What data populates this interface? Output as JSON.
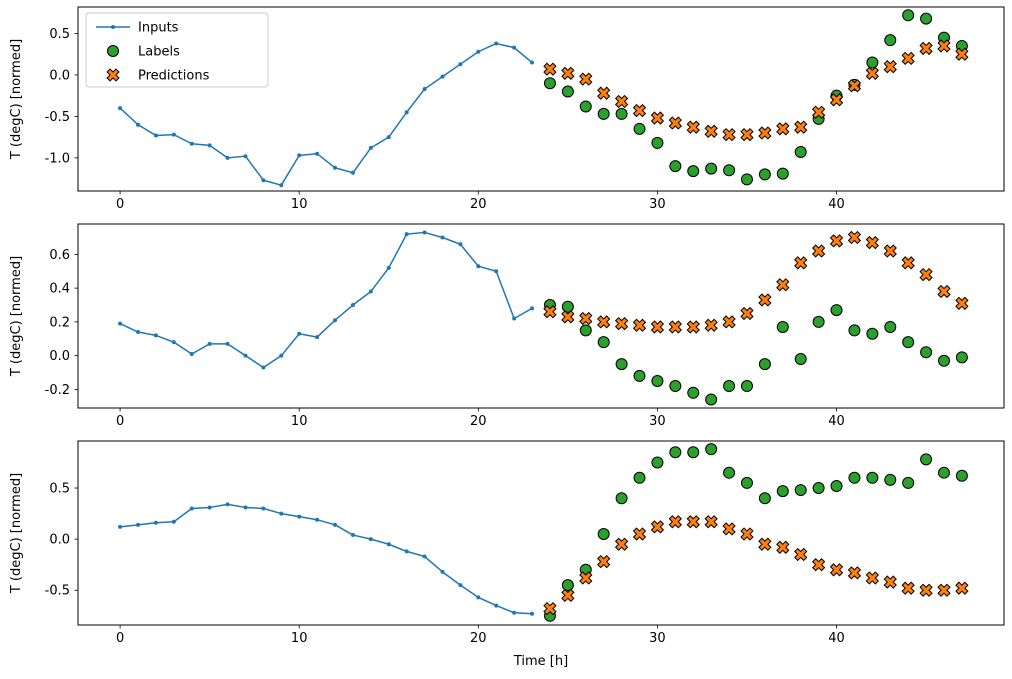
{
  "figure": {
    "xlabel": "Time [h]",
    "background": "#ffffff"
  },
  "legend": {
    "items": [
      {
        "label": "Inputs",
        "marker": "line-dot",
        "color": "#1f77b4"
      },
      {
        "label": "Labels",
        "marker": "circle",
        "color": "#2ca02c"
      },
      {
        "label": "Predictions",
        "marker": "x",
        "color": "#ff7f0e"
      }
    ]
  },
  "chart_data": [
    {
      "type": "line+scatter",
      "ylabel": "T (degC) [normed]",
      "xlim": [
        -2.35,
        49.35
      ],
      "ylim": [
        -1.4,
        0.82
      ],
      "xticks": [
        0,
        10,
        20,
        30,
        40
      ],
      "xtick_labels": [
        "0",
        "10",
        "20",
        "30",
        "40"
      ],
      "yticks": [
        0.5,
        0.0,
        -0.5,
        -1.0
      ],
      "ytick_labels": [
        "0.5",
        "0.0",
        "-0.5",
        "-1.0"
      ],
      "grid": false,
      "legend_position": "upper left",
      "series": [
        {
          "name": "Inputs",
          "marker": "line-dot",
          "color": "#1f77b4",
          "x": [
            0,
            1,
            2,
            3,
            4,
            5,
            6,
            7,
            8,
            9,
            10,
            11,
            12,
            13,
            14,
            15,
            16,
            17,
            18,
            19,
            20,
            21,
            22,
            23
          ],
          "y": [
            -0.4,
            -0.6,
            -0.73,
            -0.72,
            -0.83,
            -0.85,
            -1.0,
            -0.98,
            -1.27,
            -1.33,
            -0.97,
            -0.95,
            -1.12,
            -1.18,
            -0.88,
            -0.75,
            -0.45,
            -0.17,
            -0.02,
            0.13,
            0.28,
            0.38,
            0.33,
            0.15
          ]
        },
        {
          "name": "Labels",
          "marker": "circle",
          "color": "#2ca02c",
          "edge_color": "#000000",
          "x": [
            24,
            25,
            26,
            27,
            28,
            29,
            30,
            31,
            32,
            33,
            34,
            35,
            36,
            37,
            38,
            39,
            40,
            41,
            42,
            43,
            44,
            45,
            46,
            47
          ],
          "y": [
            -0.1,
            -0.2,
            -0.38,
            -0.47,
            -0.47,
            -0.65,
            -0.82,
            -1.1,
            -1.16,
            -1.13,
            -1.15,
            -1.26,
            -1.2,
            -1.19,
            -0.93,
            -0.53,
            -0.25,
            -0.12,
            0.15,
            0.42,
            0.72,
            0.68,
            0.45,
            0.35
          ]
        },
        {
          "name": "Predictions",
          "marker": "x",
          "color": "#ff7f0e",
          "edge_color": "#000000",
          "x": [
            24,
            25,
            26,
            27,
            28,
            29,
            30,
            31,
            32,
            33,
            34,
            35,
            36,
            37,
            38,
            39,
            40,
            41,
            42,
            43,
            44,
            45,
            46,
            47
          ],
          "y": [
            0.07,
            0.02,
            -0.05,
            -0.22,
            -0.32,
            -0.43,
            -0.52,
            -0.58,
            -0.63,
            -0.68,
            -0.72,
            -0.72,
            -0.7,
            -0.65,
            -0.63,
            -0.45,
            -0.3,
            -0.13,
            0.02,
            0.1,
            0.2,
            0.32,
            0.35,
            0.25
          ]
        }
      ]
    },
    {
      "type": "line+scatter",
      "ylabel": "T (degC) [normed]",
      "xlim": [
        -2.35,
        49.35
      ],
      "ylim": [
        -0.31,
        0.78
      ],
      "xticks": [
        0,
        10,
        20,
        30,
        40
      ],
      "xtick_labels": [
        "0",
        "10",
        "20",
        "30",
        "40"
      ],
      "yticks": [
        0.6,
        0.4,
        0.2,
        0.0,
        -0.2
      ],
      "ytick_labels": [
        "0.6",
        "0.4",
        "0.2",
        "0.0",
        "-0.2"
      ],
      "grid": false,
      "series": [
        {
          "name": "Inputs",
          "marker": "line-dot",
          "color": "#1f77b4",
          "x": [
            0,
            1,
            2,
            3,
            4,
            5,
            6,
            7,
            8,
            9,
            10,
            11,
            12,
            13,
            14,
            15,
            16,
            17,
            18,
            19,
            20,
            21,
            22,
            23
          ],
          "y": [
            0.19,
            0.14,
            0.12,
            0.08,
            0.01,
            0.07,
            0.07,
            0.0,
            -0.07,
            0.0,
            0.13,
            0.11,
            0.21,
            0.3,
            0.38,
            0.52,
            0.72,
            0.73,
            0.7,
            0.66,
            0.53,
            0.5,
            0.22,
            0.28
          ]
        },
        {
          "name": "Labels",
          "marker": "circle",
          "color": "#2ca02c",
          "edge_color": "#000000",
          "x": [
            24,
            25,
            26,
            27,
            28,
            29,
            30,
            31,
            32,
            33,
            34,
            35,
            36,
            37,
            38,
            39,
            40,
            41,
            42,
            43,
            44,
            45,
            46,
            47
          ],
          "y": [
            0.3,
            0.29,
            0.15,
            0.08,
            -0.05,
            -0.12,
            -0.15,
            -0.18,
            -0.22,
            -0.26,
            -0.18,
            -0.18,
            -0.05,
            0.17,
            -0.02,
            0.2,
            0.27,
            0.15,
            0.13,
            0.17,
            0.08,
            0.02,
            -0.03,
            -0.01
          ]
        },
        {
          "name": "Predictions",
          "marker": "x",
          "color": "#ff7f0e",
          "edge_color": "#000000",
          "x": [
            24,
            25,
            26,
            27,
            28,
            29,
            30,
            31,
            32,
            33,
            34,
            35,
            36,
            37,
            38,
            39,
            40,
            41,
            42,
            43,
            44,
            45,
            46,
            47
          ],
          "y": [
            0.26,
            0.23,
            0.22,
            0.2,
            0.19,
            0.18,
            0.17,
            0.17,
            0.17,
            0.18,
            0.2,
            0.25,
            0.33,
            0.42,
            0.55,
            0.62,
            0.68,
            0.7,
            0.67,
            0.62,
            0.55,
            0.48,
            0.38,
            0.31
          ]
        }
      ]
    },
    {
      "type": "line+scatter",
      "ylabel": "T (degC) [normed]",
      "xlabel": "Time [h]",
      "xlim": [
        -2.35,
        49.35
      ],
      "ylim": [
        -0.84,
        0.96
      ],
      "xticks": [
        0,
        10,
        20,
        30,
        40
      ],
      "xtick_labels": [
        "0",
        "10",
        "20",
        "30",
        "40"
      ],
      "yticks": [
        0.5,
        0.0,
        -0.5
      ],
      "ytick_labels": [
        "0.5",
        "0.0",
        "-0.5"
      ],
      "grid": false,
      "series": [
        {
          "name": "Inputs",
          "marker": "line-dot",
          "color": "#1f77b4",
          "x": [
            0,
            1,
            2,
            3,
            4,
            5,
            6,
            7,
            8,
            9,
            10,
            11,
            12,
            13,
            14,
            15,
            16,
            17,
            18,
            19,
            20,
            21,
            22,
            23
          ],
          "y": [
            0.12,
            0.14,
            0.16,
            0.17,
            0.3,
            0.31,
            0.34,
            0.31,
            0.3,
            0.25,
            0.22,
            0.19,
            0.14,
            0.04,
            0.0,
            -0.05,
            -0.12,
            -0.17,
            -0.32,
            -0.45,
            -0.57,
            -0.65,
            -0.72,
            -0.73
          ]
        },
        {
          "name": "Labels",
          "marker": "circle",
          "color": "#2ca02c",
          "edge_color": "#000000",
          "x": [
            24,
            25,
            26,
            27,
            28,
            29,
            30,
            31,
            32,
            33,
            34,
            35,
            36,
            37,
            38,
            39,
            40,
            41,
            42,
            43,
            44,
            45,
            46,
            47
          ],
          "y": [
            -0.75,
            -0.45,
            -0.3,
            0.05,
            0.4,
            0.6,
            0.75,
            0.85,
            0.85,
            0.88,
            0.65,
            0.55,
            0.4,
            0.47,
            0.48,
            0.5,
            0.52,
            0.6,
            0.6,
            0.58,
            0.55,
            0.78,
            0.65,
            0.62
          ]
        },
        {
          "name": "Predictions",
          "marker": "x",
          "color": "#ff7f0e",
          "edge_color": "#000000",
          "x": [
            24,
            25,
            26,
            27,
            28,
            29,
            30,
            31,
            32,
            33,
            34,
            35,
            36,
            37,
            38,
            39,
            40,
            41,
            42,
            43,
            44,
            45,
            46,
            47
          ],
          "y": [
            -0.68,
            -0.55,
            -0.38,
            -0.22,
            -0.05,
            0.05,
            0.12,
            0.17,
            0.17,
            0.17,
            0.1,
            0.05,
            -0.05,
            -0.08,
            -0.15,
            -0.25,
            -0.3,
            -0.33,
            -0.38,
            -0.42,
            -0.48,
            -0.5,
            -0.5,
            -0.48
          ]
        }
      ]
    }
  ]
}
